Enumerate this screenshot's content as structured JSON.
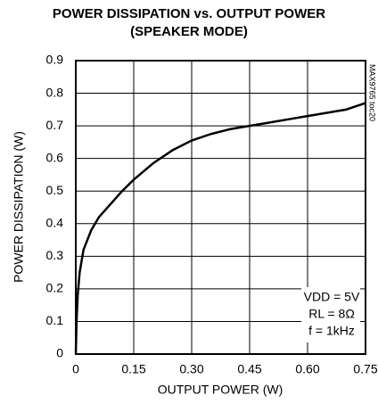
{
  "chart_data": {
    "type": "line",
    "title": [
      "POWER DISSIPATION vs. OUTPUT POWER",
      "(SPEAKER MODE)"
    ],
    "side_label": "MAX9765 toc20",
    "xlabel": "OUTPUT POWER (W)",
    "ylabel": "POWER DISSIPATION (W)",
    "annotations": [
      "VDD = 5V",
      "RL = 8Ω",
      "f = 1kHz"
    ],
    "x": [
      0,
      0.002,
      0.005,
      0.01,
      0.02,
      0.04,
      0.06,
      0.09,
      0.12,
      0.15,
      0.2,
      0.25,
      0.3,
      0.35,
      0.4,
      0.45,
      0.5,
      0.55,
      0.6,
      0.65,
      0.7,
      0.75
    ],
    "series": [
      {
        "color": "#000000",
        "values": [
          0,
          0.1,
          0.18,
          0.25,
          0.32,
          0.38,
          0.42,
          0.46,
          0.5,
          0.535,
          0.585,
          0.625,
          0.655,
          0.675,
          0.69,
          0.7,
          0.71,
          0.72,
          0.73,
          0.74,
          0.75,
          0.77
        ]
      }
    ],
    "xlim": [
      0,
      0.75
    ],
    "xticks": [
      0,
      0.15,
      {
        "value": 0.3,
        "label": "0.30"
      },
      0.45,
      {
        "value": 0.6,
        "label": "0.60"
      },
      0.75
    ],
    "ylim": [
      0,
      0.9
    ],
    "yticks": [
      0,
      0.1,
      0.2,
      0.3,
      0.4,
      0.5,
      0.6,
      0.7,
      0.8,
      0.9
    ],
    "grid": true
  }
}
